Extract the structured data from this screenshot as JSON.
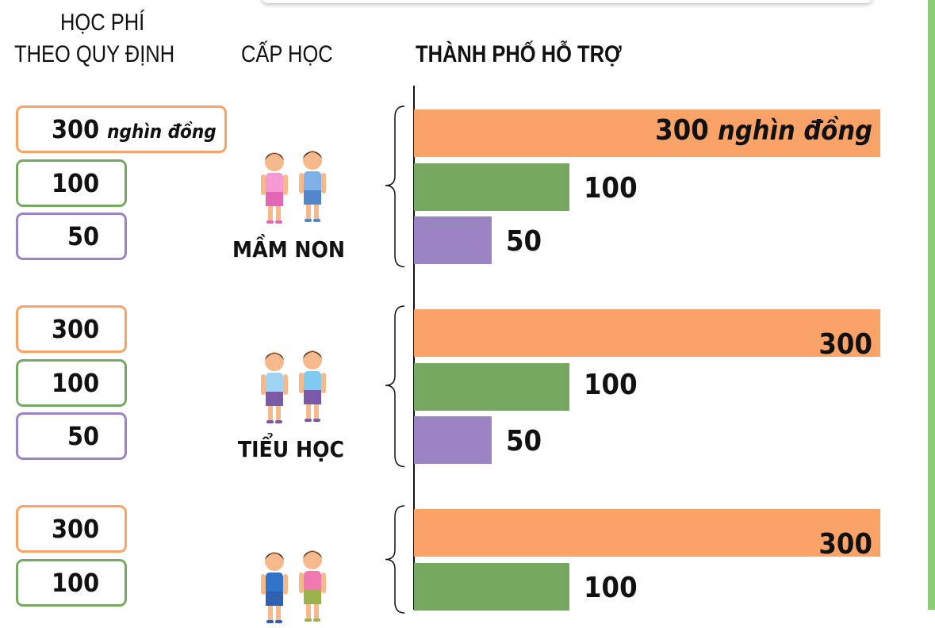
{
  "headers": {
    "fee_line1": "HỌC PHÍ",
    "fee_line2": "THEO QUY ĐỊNH",
    "level": "CẤP HỌC",
    "support": "THÀNH PHỐ HỖ TRỢ"
  },
  "unit": "nghìn đồng",
  "colors": {
    "300": "#f9a368",
    "100": "#77a862",
    "50": "#9a84c3",
    "accent_right": "#8ccb78"
  },
  "chart_data": {
    "type": "bar",
    "orientation": "horizontal",
    "title": "THÀNH PHỐ HỖ TRỢ",
    "unit": "nghìn đồng",
    "groups": [
      {
        "level": "MẦM NON",
        "fees": [
          300,
          100,
          50
        ],
        "support": [
          300,
          100,
          50
        ]
      },
      {
        "level": "TIỂU HỌC",
        "fees": [
          300,
          100,
          50
        ],
        "support": [
          300,
          100,
          50
        ]
      },
      {
        "level": "",
        "fees": [
          300,
          100
        ],
        "support": [
          300,
          100
        ]
      }
    ],
    "xlim": [
      0,
      300
    ]
  }
}
